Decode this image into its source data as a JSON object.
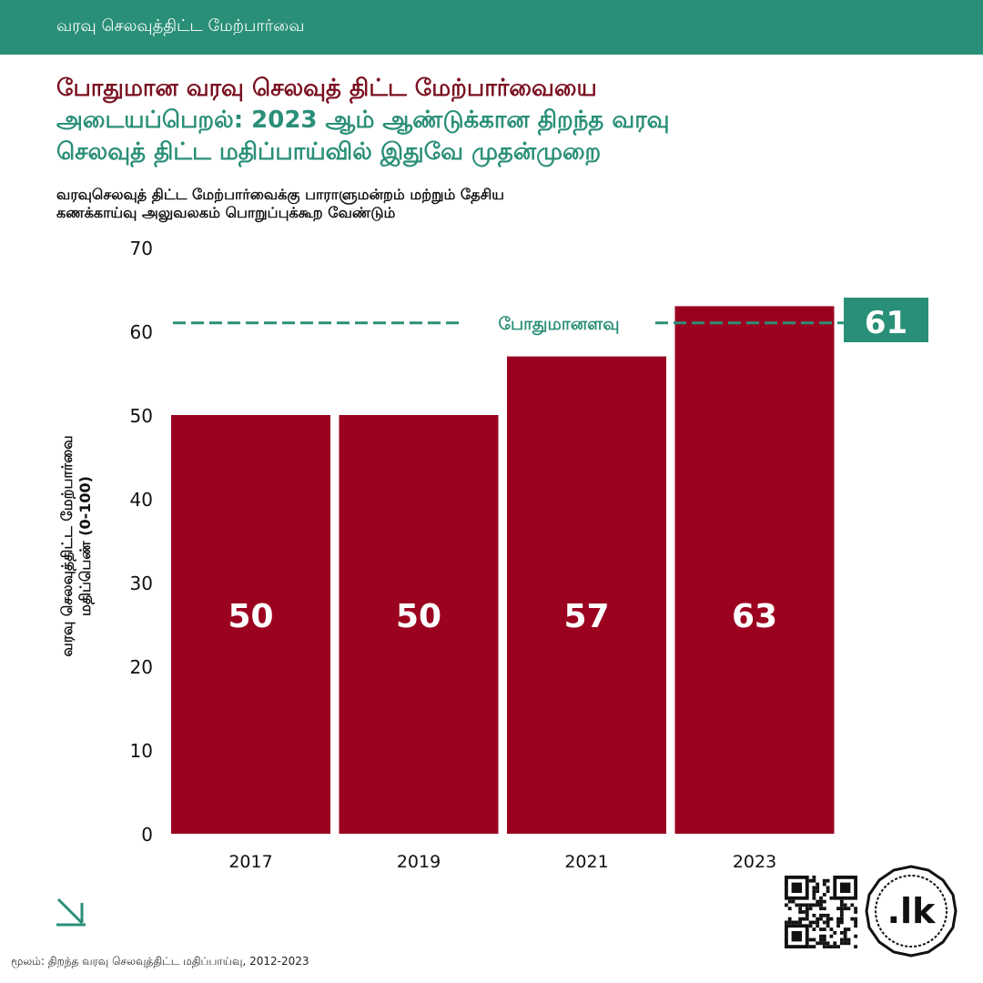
{
  "header": {
    "banner": "வரவு செலவுத்திட்ட மேற்பார்வை",
    "headline_line1": "போதுமான வரவு செலவுத் திட்ட மேற்பார்வையை",
    "headline_line2": "அடையப்பெறல்: 2023 ஆம் ஆண்டுக்கான திறந்த வரவு",
    "headline_line3": "செலவுத் திட்ட மதிப்பாய்வில் இதுவே முதன்முறை",
    "subtitle_line1": "வரவுசெலவுத் திட்ட மேற்பார்வைக்கு பாராளுமன்றம் மற்றும் தேசிய",
    "subtitle_line2": "கணக்காய்வு அலுவலகம் பொறுப்புக்கூற வேண்டும்"
  },
  "colors": {
    "brand_green": "#2a8f78",
    "bar_red": "#9b0220",
    "headline_red": "#7a1020"
  },
  "chart_data": {
    "type": "bar",
    "categories": [
      "2017",
      "2019",
      "2021",
      "2023"
    ],
    "values": [
      50,
      50,
      57,
      63
    ],
    "value_labels": [
      "50",
      "50",
      "57",
      "63"
    ],
    "ylabel_line1": "வரவு செலவுத்திட்ட மேற்பார்வை",
    "ylabel_line2": "மதிப்பெண் (0-100)",
    "ylim": [
      0,
      70
    ],
    "yticks": [
      0,
      10,
      20,
      30,
      40,
      50,
      60,
      70
    ],
    "grid": false,
    "threshold": {
      "value": 61,
      "label": "போதுமானளவு",
      "badge": "61"
    }
  },
  "footer": {
    "source": "மூலம்: திறந்த வரவு செலவுத்திட்ட மதிப்பாய்வு, 2012-2023",
    "logo_text": ".lk"
  },
  "icons": [
    "arrow-down-right-icon",
    "qr-code-icon",
    "lk-logo-icon"
  ]
}
